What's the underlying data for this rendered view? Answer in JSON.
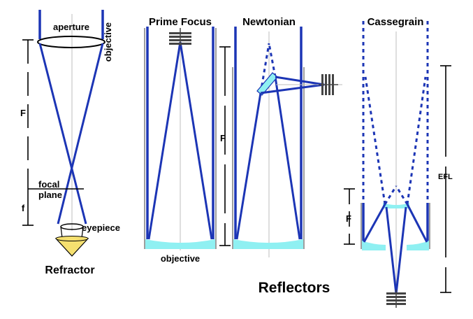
{
  "refractor": {
    "aperture": "aperture",
    "objective": "objective",
    "focal_length": "F",
    "focal_plane_line1": "focal",
    "focal_plane_line2": "plane",
    "eyepiece_focal": "f",
    "eyepiece": "eyepiece",
    "title": "Refractor"
  },
  "prime_focus": {
    "title": "Prime Focus",
    "objective": "objective"
  },
  "newtonian": {
    "title": "Newtonian",
    "focal_length": "F"
  },
  "cassegrain": {
    "title": "Cassegrain",
    "focal_length": "F",
    "effective_focal_length": "EFL"
  },
  "reflectors_title": "Reflectors",
  "colors": {
    "ray": "#1c35b5",
    "mirror": "#8ff0f2",
    "eyepiece": "#f5e070",
    "dimension": "#000000"
  },
  "icons": [
    "lens-icon",
    "mirror-icon",
    "eyepiece-icon",
    "camera-detector-icon"
  ]
}
